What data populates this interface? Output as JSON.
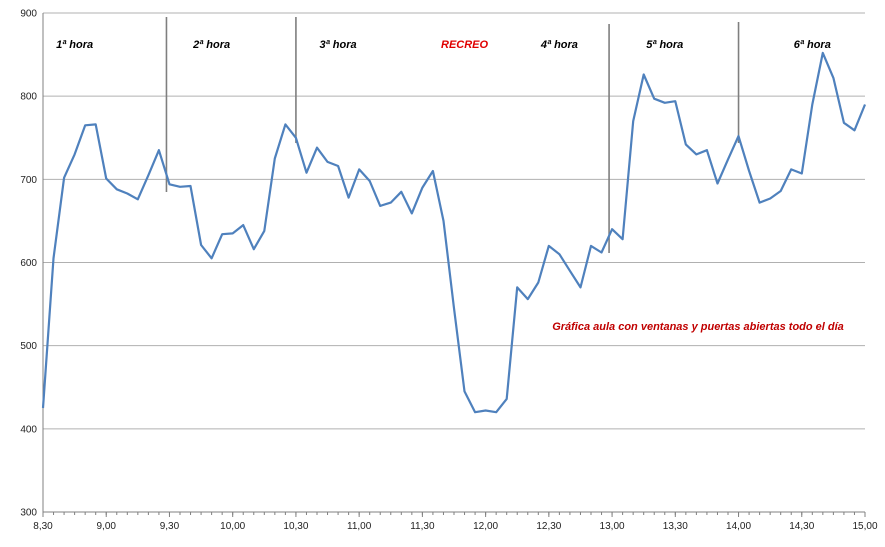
{
  "chart_data": {
    "type": "line",
    "title": "",
    "xlabel": "",
    "ylabel": "",
    "ylim": [
      300,
      900
    ],
    "yticks": [
      "300",
      "400",
      "500",
      "600",
      "700",
      "800",
      "900"
    ],
    "xticks": [
      "8,30",
      "9,00",
      "9,30",
      "10,00",
      "10,30",
      "11,00",
      "11,30",
      "12,00",
      "12,30",
      "13,00",
      "13,30",
      "14,00",
      "14,30",
      "15,00"
    ],
    "grid": "horizontal",
    "line_color": "#4f81bd",
    "series": [
      {
        "x_minutes_from_0830": [
          0,
          5,
          10,
          15,
          20,
          25,
          30,
          35,
          40,
          45,
          50,
          55,
          60,
          65,
          70,
          75,
          80,
          85,
          90,
          95,
          100,
          105,
          110,
          115,
          120,
          125,
          130,
          135,
          140,
          145,
          150,
          155,
          160,
          165,
          170,
          175,
          180,
          185,
          190,
          195,
          200,
          205,
          210,
          215,
          220,
          225,
          230,
          235,
          240,
          245,
          250,
          255,
          260,
          265,
          270,
          275,
          280,
          285,
          290,
          295,
          300,
          305,
          310,
          315,
          320,
          325,
          330,
          335,
          340,
          345,
          350,
          355,
          360,
          365,
          370,
          375,
          380,
          385,
          390
        ],
        "values": [
          425,
          605,
          702,
          730,
          765,
          766,
          701,
          688,
          683,
          676,
          705,
          735,
          694,
          691,
          692,
          621,
          605,
          634,
          635,
          645,
          616,
          638,
          725,
          766,
          750,
          708,
          738,
          721,
          716,
          678,
          712,
          698,
          668,
          672,
          685,
          659,
          690,
          710,
          650,
          545,
          445,
          420,
          422,
          420,
          436,
          570,
          556,
          576,
          620,
          610,
          590,
          570,
          620,
          612,
          640,
          628,
          770,
          826,
          797,
          792,
          794,
          742,
          730,
          735,
          695,
          724,
          752,
          710,
          672,
          677,
          686,
          712,
          707,
          790,
          852,
          822,
          768,
          759,
          790
        ]
      }
    ],
    "dividers_at": [
      "9,30",
      "10,30",
      "13,00",
      "14,00"
    ],
    "period_labels": [
      {
        "text": "1ª hora",
        "at": "8,45",
        "highlight": false
      },
      {
        "text": "2ª hora",
        "at": "9,50",
        "highlight": false
      },
      {
        "text": "3ª hora",
        "at": "10,50",
        "highlight": false
      },
      {
        "text": "RECREO",
        "at": "11,50",
        "highlight": true
      },
      {
        "text": "4ª hora",
        "at": "12,35",
        "highlight": false
      },
      {
        "text": "5ª hora",
        "at": "13,25",
        "highlight": false
      },
      {
        "text": "6ª hora",
        "at": "14,35",
        "highlight": false
      }
    ],
    "annotation": "Gráfica  aula con ventanas  y puertas abiertas todo el día"
  }
}
